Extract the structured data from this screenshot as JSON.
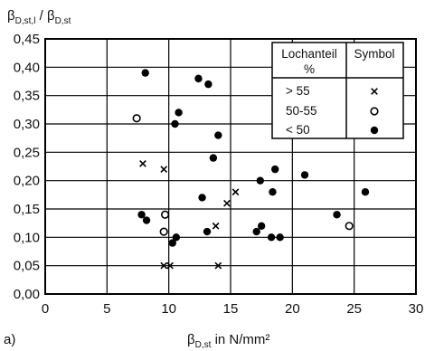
{
  "chart_data": {
    "type": "scatter",
    "panel_label": "a)",
    "ylabel": {
      "main1": "β",
      "sub1": "D,st,l",
      "slash": " / ",
      "main2": "β",
      "sub2": "D,st"
    },
    "xlabel": {
      "main": "β",
      "sub": "D,st",
      "unit": " in N/mm²"
    },
    "xlim": [
      0,
      30
    ],
    "ylim": [
      0.0,
      0.45
    ],
    "x_ticks": [
      "0",
      "5",
      "10",
      "15",
      "20",
      "25",
      "30"
    ],
    "y_ticks": [
      "0,00",
      "0,05",
      "0,10",
      "0,15",
      "0,20",
      "0,25",
      "0,30",
      "0,35",
      "0,40",
      "0,45"
    ],
    "grid": true,
    "legend": {
      "placement": "top-right",
      "header_col1_line1": "Lochanteil",
      "header_col1_line2": "%",
      "header_col2": "Symbol",
      "rows": [
        {
          "label": "> 55",
          "marker": "cross"
        },
        {
          "label": "50-55",
          "marker": "open-circle"
        },
        {
          "label": "< 50",
          "marker": "filled-circle"
        }
      ]
    },
    "series": [
      {
        "name": "> 55",
        "marker": "cross",
        "points": [
          {
            "x": 7.9,
            "y": 0.23
          },
          {
            "x": 9.6,
            "y": 0.22
          },
          {
            "x": 14.7,
            "y": 0.16
          },
          {
            "x": 15.4,
            "y": 0.18
          },
          {
            "x": 13.8,
            "y": 0.12
          },
          {
            "x": 9.6,
            "y": 0.05
          },
          {
            "x": 10.1,
            "y": 0.05
          },
          {
            "x": 14.0,
            "y": 0.05
          }
        ]
      },
      {
        "name": "50-55",
        "marker": "open-circle",
        "points": [
          {
            "x": 7.4,
            "y": 0.31
          },
          {
            "x": 9.7,
            "y": 0.14
          },
          {
            "x": 9.6,
            "y": 0.11
          },
          {
            "x": 24.6,
            "y": 0.12
          }
        ]
      },
      {
        "name": "< 50",
        "marker": "filled-circle",
        "points": [
          {
            "x": 8.1,
            "y": 0.39
          },
          {
            "x": 12.4,
            "y": 0.38
          },
          {
            "x": 13.2,
            "y": 0.37
          },
          {
            "x": 10.5,
            "y": 0.3
          },
          {
            "x": 10.8,
            "y": 0.32
          },
          {
            "x": 14.0,
            "y": 0.28
          },
          {
            "x": 13.6,
            "y": 0.24
          },
          {
            "x": 7.8,
            "y": 0.14
          },
          {
            "x": 8.2,
            "y": 0.13
          },
          {
            "x": 12.7,
            "y": 0.17
          },
          {
            "x": 10.3,
            "y": 0.09
          },
          {
            "x": 10.6,
            "y": 0.1
          },
          {
            "x": 13.1,
            "y": 0.11
          },
          {
            "x": 17.4,
            "y": 0.2
          },
          {
            "x": 18.4,
            "y": 0.18
          },
          {
            "x": 18.6,
            "y": 0.22
          },
          {
            "x": 21.0,
            "y": 0.21
          },
          {
            "x": 17.1,
            "y": 0.11
          },
          {
            "x": 17.5,
            "y": 0.12
          },
          {
            "x": 18.3,
            "y": 0.1
          },
          {
            "x": 19.0,
            "y": 0.1
          },
          {
            "x": 23.6,
            "y": 0.14
          },
          {
            "x": 25.9,
            "y": 0.18
          }
        ]
      }
    ]
  }
}
